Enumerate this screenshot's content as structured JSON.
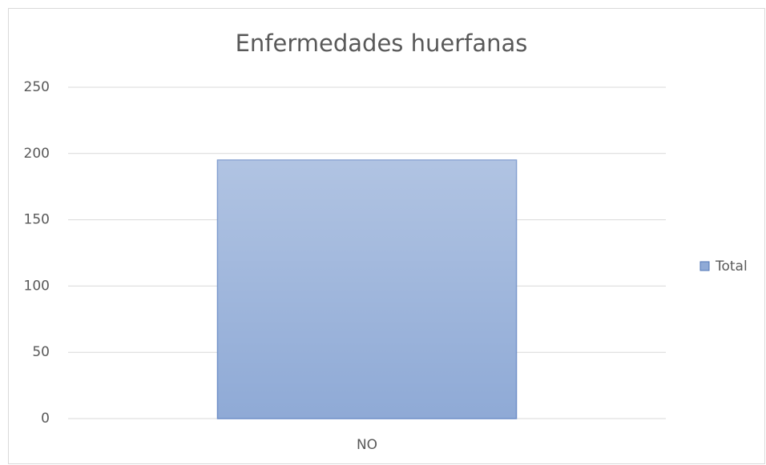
{
  "chart_data": {
    "type": "bar",
    "title": "Enfermedades huerfanas",
    "categories": [
      "NO"
    ],
    "series": [
      {
        "name": "Total",
        "color": "#8faad6",
        "values": [
          195
        ]
      }
    ],
    "ylim": [
      0,
      250
    ],
    "yticks": [
      0,
      50,
      100,
      150,
      200,
      250
    ],
    "grid": true,
    "legend": "right"
  }
}
